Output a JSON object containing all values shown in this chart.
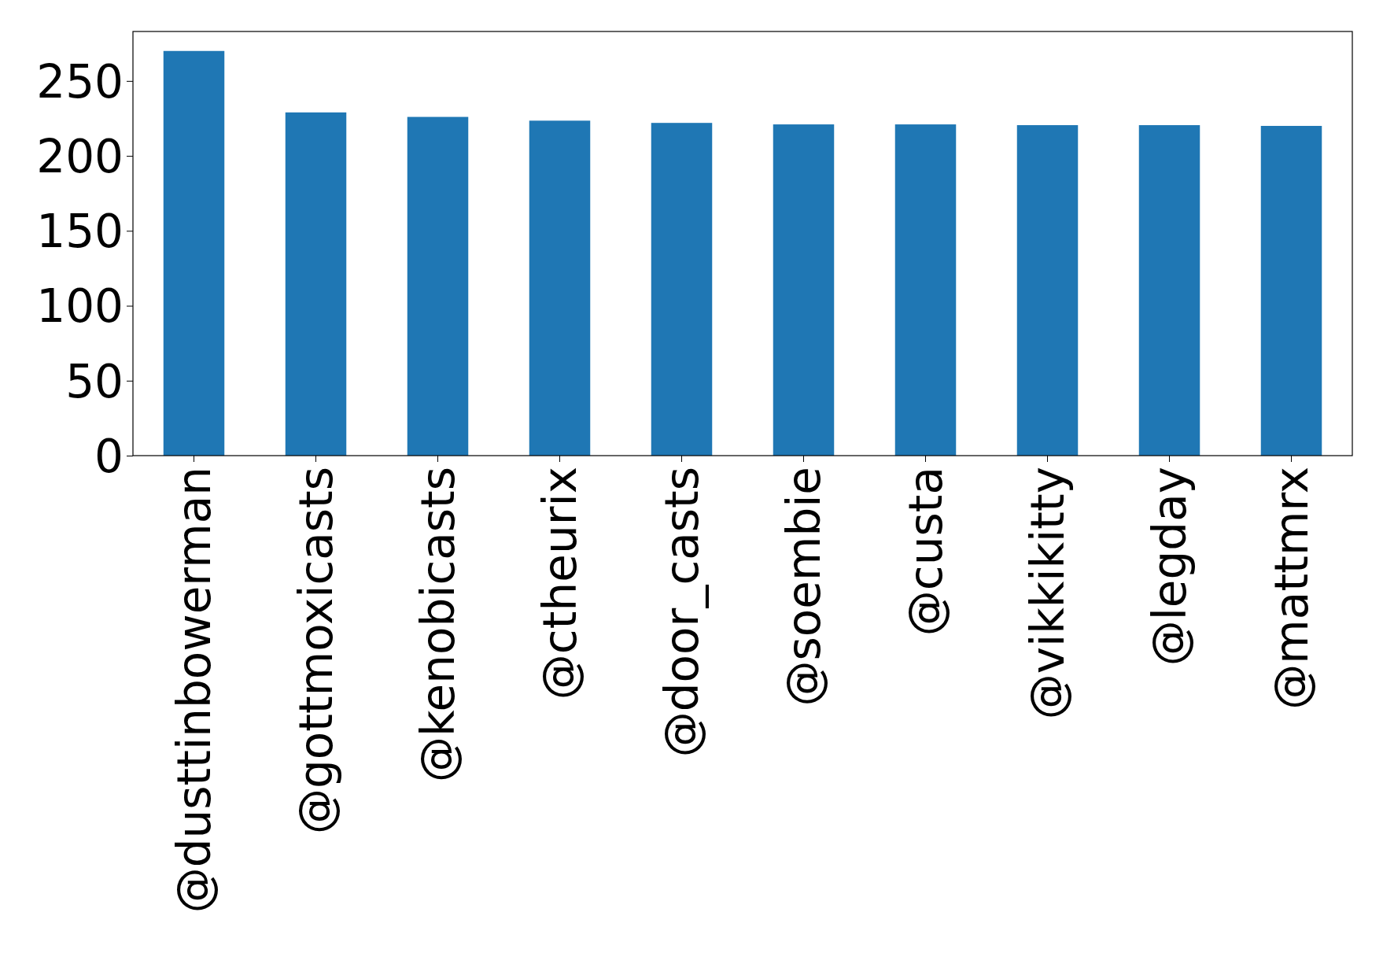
{
  "chart_data": {
    "type": "bar",
    "categories": [
      "@dusttinbowerman",
      "@gottmoxicasts",
      "@kenobicasts",
      "@ctheurix",
      "@door_casts",
      "@soembie",
      "@custa",
      "@vikkikitty",
      "@legday",
      "@mattmrx"
    ],
    "values": [
      270,
      229,
      226,
      223.5,
      222,
      221,
      221,
      220.5,
      220.5,
      220
    ],
    "color": "#1f77b4",
    "ylim": [
      0,
      283
    ],
    "yticks": [
      0,
      50,
      100,
      150,
      200,
      250
    ],
    "grid": false
  }
}
